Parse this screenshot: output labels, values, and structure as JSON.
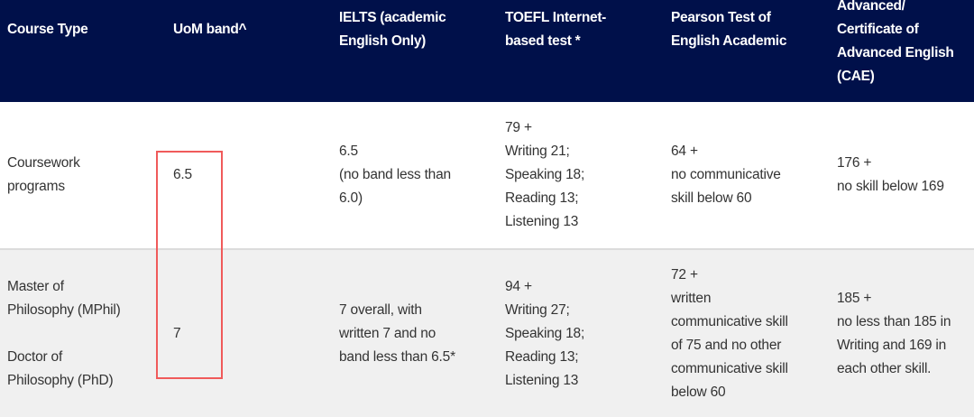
{
  "highlight_color": "#f05a5a",
  "header_color": "#00104a",
  "table": {
    "headers": [
      [
        "Course Type"
      ],
      [
        "UoM band^"
      ],
      [
        "IELTS (academic",
        "English Only)"
      ],
      [
        "TOEFL Internet-",
        "based test *"
      ],
      [
        "Pearson Test of",
        "English Academic"
      ],
      [
        "Advanced/",
        "Certificate of",
        "Advanced English",
        "(CAE)"
      ]
    ],
    "rows": [
      [
        [
          "Coursework",
          "programs"
        ],
        [
          "6.5"
        ],
        [
          "6.5",
          "(no band less than",
          "6.0)"
        ],
        [
          "79 +",
          "Writing 21;",
          "Speaking 18;",
          "Reading 13;",
          "Listening 13"
        ],
        [
          "64 +",
          "no communicative",
          "skill below 60"
        ],
        [
          "176 +",
          "no skill below 169"
        ]
      ],
      [
        [
          "Master of",
          "Philosophy (MPhil)",
          "",
          "Doctor of",
          "Philosophy (PhD)"
        ],
        [
          "7"
        ],
        [
          "7 overall, with",
          "written 7 and no",
          "band less than 6.5*"
        ],
        [
          "94 +",
          "Writing 27;",
          "Speaking 18;",
          "Reading 13;",
          "Listening 13"
        ],
        [
          "72 +",
          "written",
          "communicative skill",
          "of 75 and no other",
          "communicative skill",
          "below 60"
        ],
        [
          "185 +",
          "no less than 185 in",
          "Writing and 169 in",
          "each other skill."
        ]
      ]
    ]
  }
}
